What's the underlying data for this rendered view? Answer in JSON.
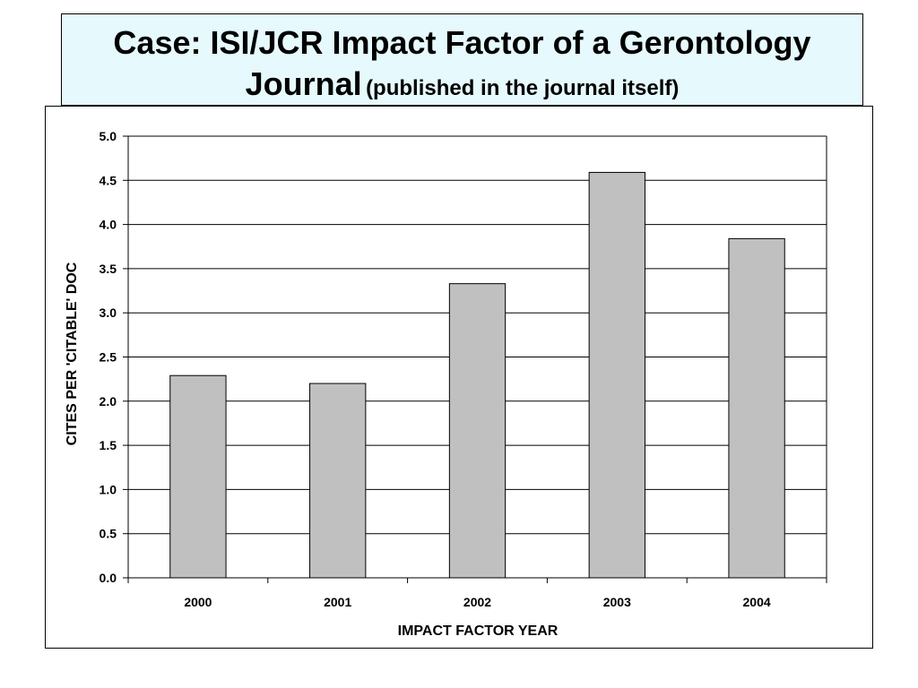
{
  "slide": {
    "title_main_1": "Case: ISI/JCR Impact Factor of a Gerontology",
    "title_main_2": "Journal",
    "title_sub": "(published in the journal itself)",
    "title_bg_color": "#e6fafd"
  },
  "chart_data": {
    "type": "bar",
    "categories": [
      "2000",
      "2001",
      "2002",
      "2003",
      "2004"
    ],
    "values": [
      2.29,
      2.2,
      3.33,
      4.59,
      3.84
    ],
    "xlabel": "IMPACT FACTOR YEAR",
    "ylabel": "CITES PER 'CITABLE' DOC",
    "ylim": [
      0,
      5
    ],
    "yticks": [
      "0.0",
      "0.5",
      "1.0",
      "1.5",
      "2.0",
      "2.5",
      "3.0",
      "3.5",
      "4.0",
      "4.5",
      "5.0"
    ],
    "grid": true,
    "legend": "none",
    "bar_color": "#c0c0c0"
  }
}
